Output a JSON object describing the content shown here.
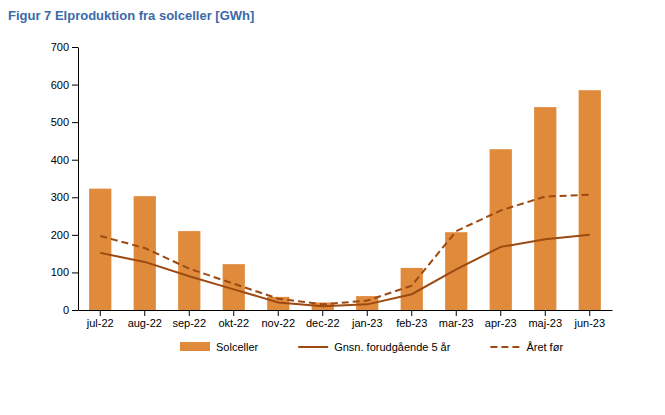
{
  "chart_data": {
    "type": "bar",
    "title": "Figur 7 Elproduktion fra solceller [GWh]",
    "categories": [
      "jul-22",
      "aug-22",
      "sep-22",
      "okt-22",
      "nov-22",
      "dec-22",
      "jan-23",
      "feb-23",
      "mar-23",
      "apr-23",
      "maj-23",
      "jun-23"
    ],
    "series": [
      {
        "name": "Solceller",
        "type": "bar",
        "color": "#e08a3c",
        "values": [
          323,
          303,
          210,
          122,
          35,
          20,
          37,
          112,
          207,
          428,
          540,
          585
        ]
      },
      {
        "name": "Gnsn. forudgående 5 år",
        "type": "line",
        "color": "#9c4a12",
        "line_style": "solid",
        "values": [
          152,
          128,
          90,
          55,
          20,
          10,
          15,
          42,
          108,
          168,
          188,
          200
        ]
      },
      {
        "name": "Året før",
        "type": "line",
        "color": "#9c4a12",
        "line_style": "dashed",
        "values": [
          197,
          165,
          110,
          70,
          30,
          15,
          25,
          65,
          210,
          265,
          302,
          307
        ]
      }
    ],
    "ylim": [
      0,
      700
    ],
    "yticks": [
      0,
      100,
      200,
      300,
      400,
      500,
      600,
      700
    ],
    "grid": false,
    "legend": "bottom"
  }
}
